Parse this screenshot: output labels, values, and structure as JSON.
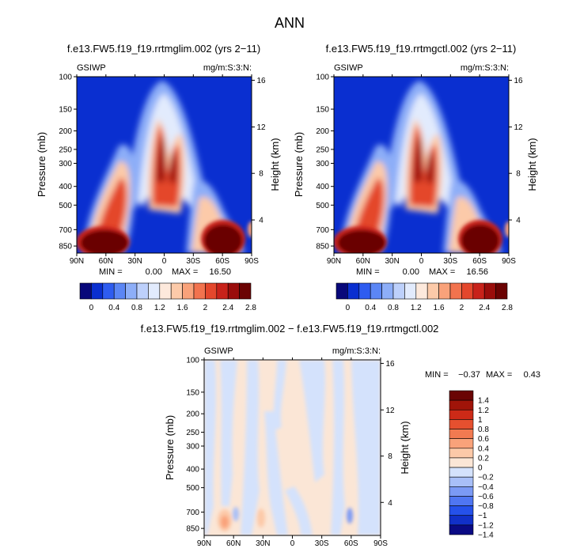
{
  "title": "ANN",
  "chart_data": [
    {
      "type": "heatmap",
      "title": "f.e13.FW5.f19_f19.rrtmglim.002 (yrs 2−11)",
      "variable": "GSIWP",
      "units": "mg/m:S:3:N:",
      "ylabel_left": "Pressure (mb)",
      "ylabel_right": "Height (km)",
      "x_ticks": [
        "90N",
        "60N",
        "30N",
        "0",
        "30S",
        "60S",
        "90S"
      ],
      "y_ticks": [
        "100",
        "150",
        "200",
        "250",
        "300",
        "400",
        "500",
        "700",
        "850"
      ],
      "y_ticks_right": [
        "16",
        "12",
        "8",
        "4"
      ],
      "stats_min_label": "MIN =",
      "stats_min": "0.00",
      "stats_max_label": "MAX =",
      "stats_max": "16.50",
      "colorbar_levels": [
        "0",
        "0.4",
        "0.8",
        "1.2",
        "1.6",
        "2",
        "2.4",
        "2.8"
      ],
      "colorbar_range": [
        0,
        2.8
      ]
    },
    {
      "type": "heatmap",
      "title": "f.e13.FW5.f19_f19.rrtmgctl.002 (yrs 2−11)",
      "variable": "GSIWP",
      "units": "mg/m:S:3:N:",
      "ylabel_left": "Pressure (mb)",
      "ylabel_right": "Height (km)",
      "x_ticks": [
        "90N",
        "60N",
        "30N",
        "0",
        "30S",
        "60S",
        "90S"
      ],
      "y_ticks": [
        "100",
        "150",
        "200",
        "250",
        "300",
        "400",
        "500",
        "700",
        "850"
      ],
      "y_ticks_right": [
        "16",
        "12",
        "8",
        "4"
      ],
      "stats_min_label": "MIN =",
      "stats_min": "0.00",
      "stats_max_label": "MAX =",
      "stats_max": "16.56",
      "colorbar_levels": [
        "0",
        "0.4",
        "0.8",
        "1.2",
        "1.6",
        "2",
        "2.4",
        "2.8"
      ],
      "colorbar_range": [
        0,
        2.8
      ]
    },
    {
      "type": "heatmap",
      "title": "f.e13.FW5.f19_f19.rrtmglim.002 − f.e13.FW5.f19_f19.rrtmgctl.002",
      "variable": "GSIWP",
      "units": "mg/m:S:3:N:",
      "ylabel_left": "Pressure (mb)",
      "ylabel_right": "Height (km)",
      "x_ticks": [
        "90N",
        "60N",
        "30N",
        "0",
        "30S",
        "60S",
        "90S"
      ],
      "y_ticks": [
        "100",
        "150",
        "200",
        "250",
        "300",
        "400",
        "500",
        "700",
        "850"
      ],
      "y_ticks_right": [
        "16",
        "12",
        "8",
        "4"
      ],
      "stats_min_label": "MIN =",
      "stats_min": "−0.37",
      "stats_max_label": "MAX =",
      "stats_max": "0.43",
      "colorbar_levels": [
        "1.4",
        "1.2",
        "1",
        "0.8",
        "0.6",
        "0.4",
        "0.2",
        "0",
        "−0.2",
        "−0.4",
        "−0.6",
        "−0.8",
        "−1",
        "−1.2",
        "−1.4"
      ],
      "colorbar_range": [
        -1.4,
        1.4
      ]
    }
  ],
  "palettes": {
    "sequential": [
      "#08087a",
      "#0a2fd0",
      "#2e5cf0",
      "#5b86f5",
      "#8daef8",
      "#bdd0fb",
      "#e2ebfd",
      "#fde9dc",
      "#fccaa9",
      "#f9a27a",
      "#f2734e",
      "#e4472c",
      "#c8221a",
      "#9a0d0b",
      "#6b0303"
    ],
    "diverging": [
      "#0a0a84",
      "#1130c8",
      "#2551ea",
      "#4f76f2",
      "#7b9af5",
      "#a8bff8",
      "#d4e2fc",
      "#fbe6d6",
      "#fcc9a8",
      "#f9a27a",
      "#f27a51",
      "#e6502f",
      "#cc2a17",
      "#a01409",
      "#6a0404"
    ]
  }
}
